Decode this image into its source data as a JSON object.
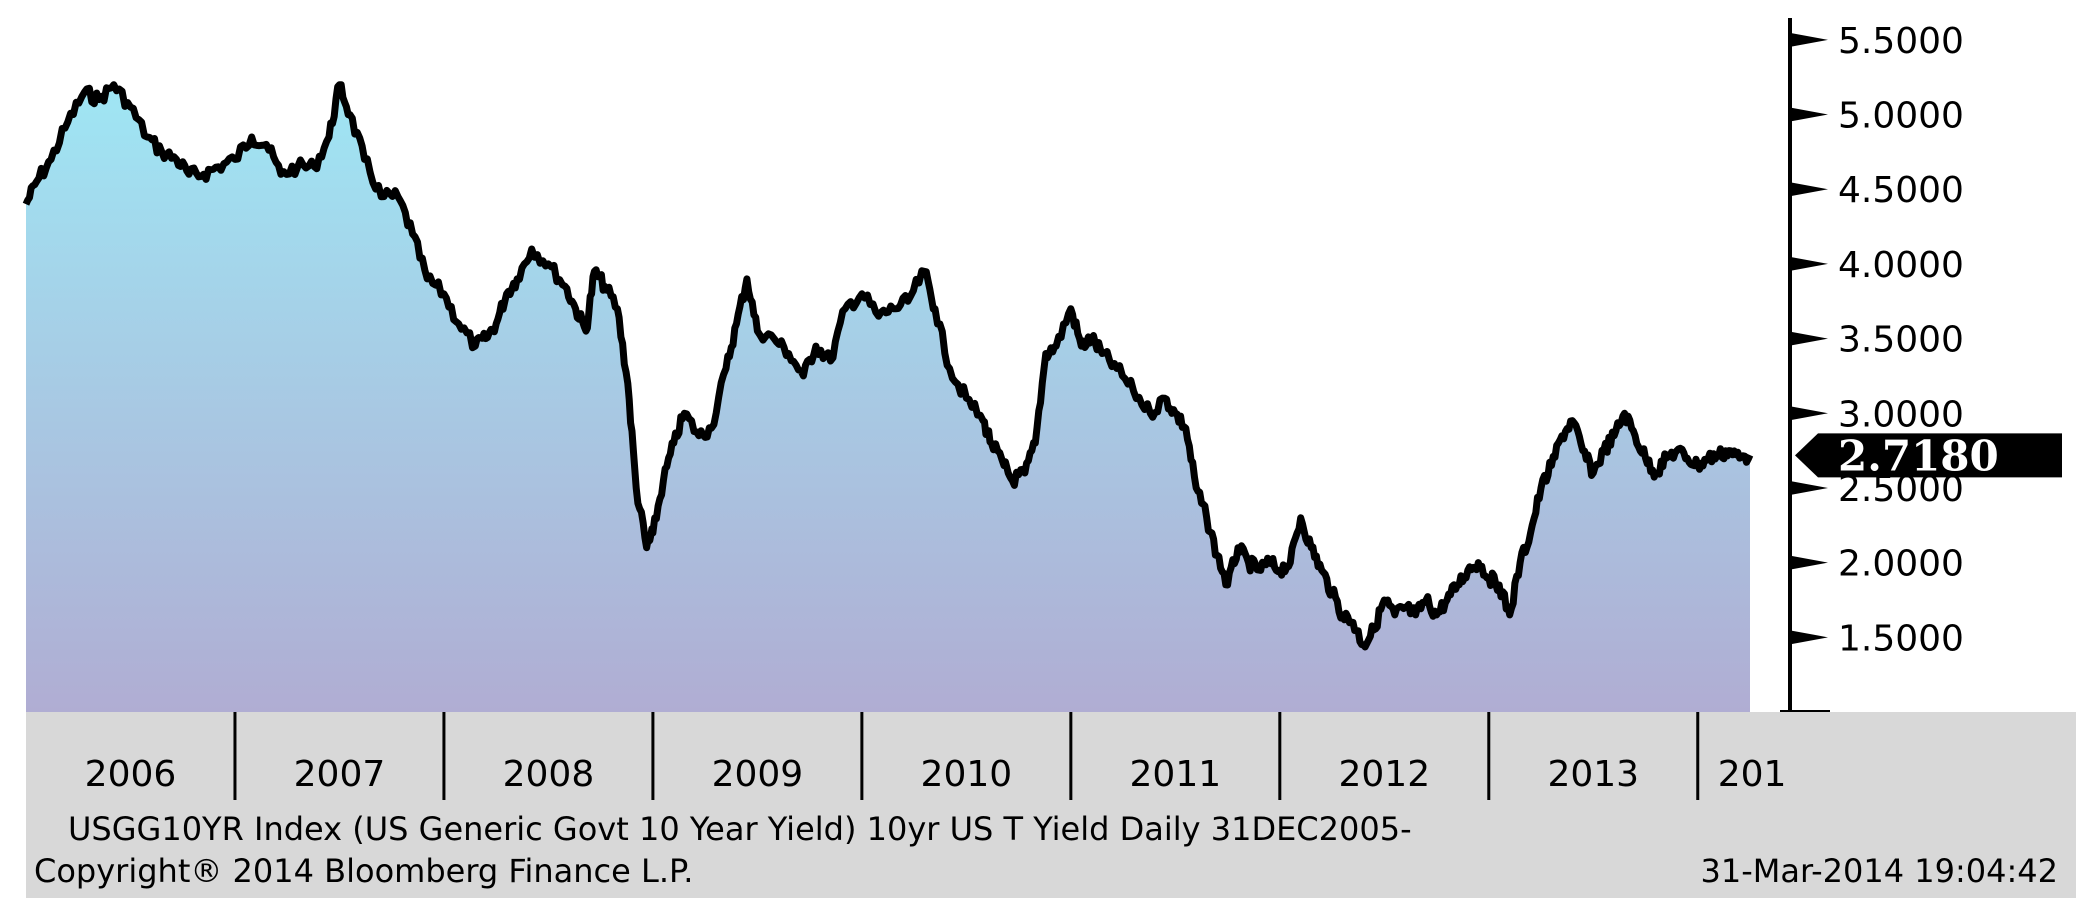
{
  "chart_data": {
    "type": "area",
    "title": "USGG10YR Index (US Generic Govt 10 Year Yield) 10yr US T Yield  Daily 31DEC2005-",
    "date_line": "31-Mar-2014 19:04:42",
    "copyright": "Copyright® 2014 Bloomberg Finance L.P.",
    "last_value_label": "2.7180",
    "y_tick_labels": [
      "5.5000",
      "5.0000",
      "4.5000",
      "4.0000",
      "3.5000",
      "3.0000",
      "2.5000",
      "2.0000",
      "1.5000"
    ],
    "y_tick_values": [
      5.5,
      5.0,
      4.5,
      4.0,
      3.5,
      3.0,
      2.5,
      2.0,
      1.5
    ],
    "ylim": [
      1.0,
      5.7
    ],
    "x_tick_labels": [
      "2006",
      "2007",
      "2008",
      "2009",
      "2010",
      "2011",
      "2012",
      "2013",
      "201"
    ],
    "xlim": [
      2006.0,
      2014.25
    ],
    "grid": false,
    "colors": {
      "area_top": "#9fe6f4",
      "area_bottom": "#b0add3",
      "line": "#000000",
      "axis_band": "#d8d8d8"
    },
    "series": [
      {
        "x": [
          2006.0,
          2006.05,
          2006.12,
          2006.2,
          2006.28,
          2006.35,
          2006.42,
          2006.5,
          2006.58,
          2006.65,
          2006.72,
          2006.78,
          2006.85,
          2006.92,
          2007.0,
          2007.08,
          2007.15,
          2007.22,
          2007.3,
          2007.38,
          2007.45,
          2007.5,
          2007.55,
          2007.62,
          2007.7,
          2007.78,
          2007.85,
          2007.92,
          2008.0,
          2008.07,
          2008.15,
          2008.2,
          2008.25,
          2008.3,
          2008.35,
          2008.42,
          2008.5,
          2008.58,
          2008.63,
          2008.68,
          2008.72,
          2008.77,
          2008.83,
          2008.88,
          2008.92,
          2008.97,
          2009.0,
          2009.05,
          2009.1,
          2009.15,
          2009.22,
          2009.28,
          2009.35,
          2009.4,
          2009.45,
          2009.5,
          2009.58,
          2009.65,
          2009.72,
          2009.78,
          2009.85,
          2009.92,
          2010.0,
          2010.08,
          2010.15,
          2010.22,
          2010.3,
          2010.35,
          2010.42,
          2010.5,
          2010.58,
          2010.62,
          2010.68,
          2010.72,
          2010.78,
          2010.83,
          2010.88,
          2010.93,
          2011.0,
          2011.05,
          2011.1,
          2011.15,
          2011.22,
          2011.3,
          2011.38,
          2011.45,
          2011.5,
          2011.55,
          2011.6,
          2011.65,
          2011.7,
          2011.75,
          2011.8,
          2011.85,
          2011.9,
          2011.95,
          2012.0,
          2012.05,
          2012.1,
          2012.15,
          2012.2,
          2012.25,
          2012.3,
          2012.35,
          2012.4,
          2012.45,
          2012.5,
          2012.55,
          2012.6,
          2012.65,
          2012.7,
          2012.75,
          2012.8,
          2012.85,
          2012.9,
          2012.95,
          2013.0,
          2013.05,
          2013.1,
          2013.15,
          2013.2,
          2013.25,
          2013.3,
          2013.35,
          2013.4,
          2013.45,
          2013.5,
          2013.55,
          2013.6,
          2013.65,
          2013.7,
          2013.75,
          2013.8,
          2013.85,
          2013.9,
          2013.95,
          2014.0,
          2014.05,
          2014.1,
          2014.15,
          2014.2,
          2014.25
        ],
        "y": [
          4.4,
          4.55,
          4.7,
          4.95,
          5.15,
          5.1,
          5.2,
          5.05,
          4.85,
          4.75,
          4.7,
          4.6,
          4.6,
          4.65,
          4.7,
          4.85,
          4.8,
          4.6,
          4.65,
          4.65,
          4.85,
          5.2,
          5.0,
          4.7,
          4.45,
          4.45,
          4.2,
          3.9,
          3.8,
          3.6,
          3.45,
          3.5,
          3.6,
          3.8,
          3.9,
          4.1,
          4.0,
          3.85,
          3.7,
          3.55,
          3.95,
          3.85,
          3.7,
          3.2,
          2.5,
          2.1,
          2.2,
          2.55,
          2.8,
          3.0,
          2.85,
          2.9,
          3.3,
          3.6,
          3.9,
          3.55,
          3.5,
          3.4,
          3.25,
          3.45,
          3.35,
          3.7,
          3.8,
          3.65,
          3.7,
          3.75,
          3.95,
          3.7,
          3.3,
          3.1,
          2.95,
          2.8,
          2.65,
          2.55,
          2.6,
          2.8,
          3.4,
          3.45,
          3.7,
          3.45,
          3.5,
          3.4,
          3.3,
          3.15,
          3.0,
          3.1,
          3.0,
          2.9,
          2.5,
          2.3,
          2.05,
          1.85,
          2.1,
          2.0,
          1.95,
          2.0,
          1.95,
          2.0,
          2.3,
          2.1,
          1.95,
          1.8,
          1.65,
          1.6,
          1.45,
          1.55,
          1.75,
          1.65,
          1.7,
          1.65,
          1.75,
          1.65,
          1.75,
          1.85,
          1.95,
          2.0,
          1.9,
          1.85,
          1.65,
          2.0,
          2.2,
          2.5,
          2.65,
          2.85,
          2.95,
          2.75,
          2.6,
          2.75,
          2.85,
          3.0,
          2.85,
          2.7,
          2.6,
          2.7,
          2.75,
          2.7,
          2.65,
          2.7,
          2.72,
          2.75,
          2.7,
          2.72
        ]
      }
    ]
  }
}
